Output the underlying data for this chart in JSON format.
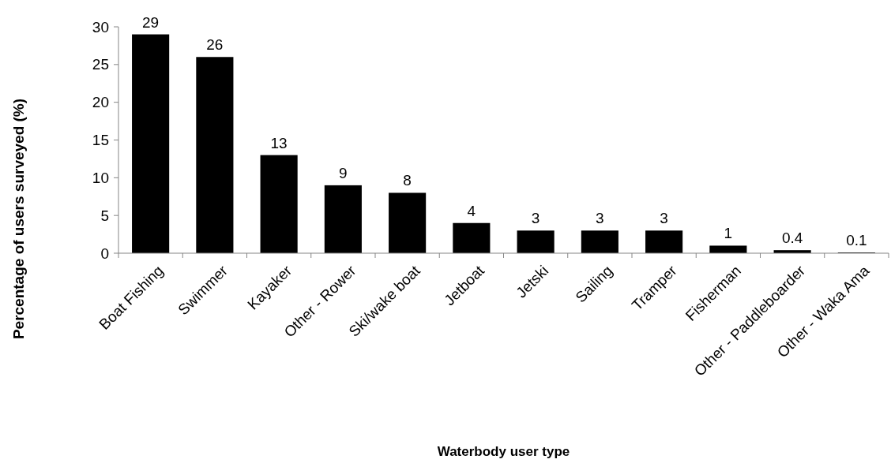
{
  "chart_data": {
    "type": "bar",
    "xlabel": "Waterbody user type",
    "ylabel": "Percentage of users surveyed (%)",
    "categories": [
      "Boat Fishing",
      "Swimmer",
      "Kayaker",
      "Other - Rower",
      "Ski/wake boat",
      "Jetboat",
      "Jetski",
      "Sailing",
      "Tramper",
      "Fisherman",
      "Other - Paddleboarder",
      "Other - Waka Ama"
    ],
    "values": [
      29,
      26,
      13,
      9,
      8,
      4,
      3,
      3,
      3,
      1,
      0.4,
      0.1
    ],
    "color": "#000000",
    "ylim": [
      0,
      30
    ],
    "yticks": [
      0,
      5,
      10,
      15,
      20,
      25,
      30
    ],
    "data_labels": true,
    "grid": false
  }
}
